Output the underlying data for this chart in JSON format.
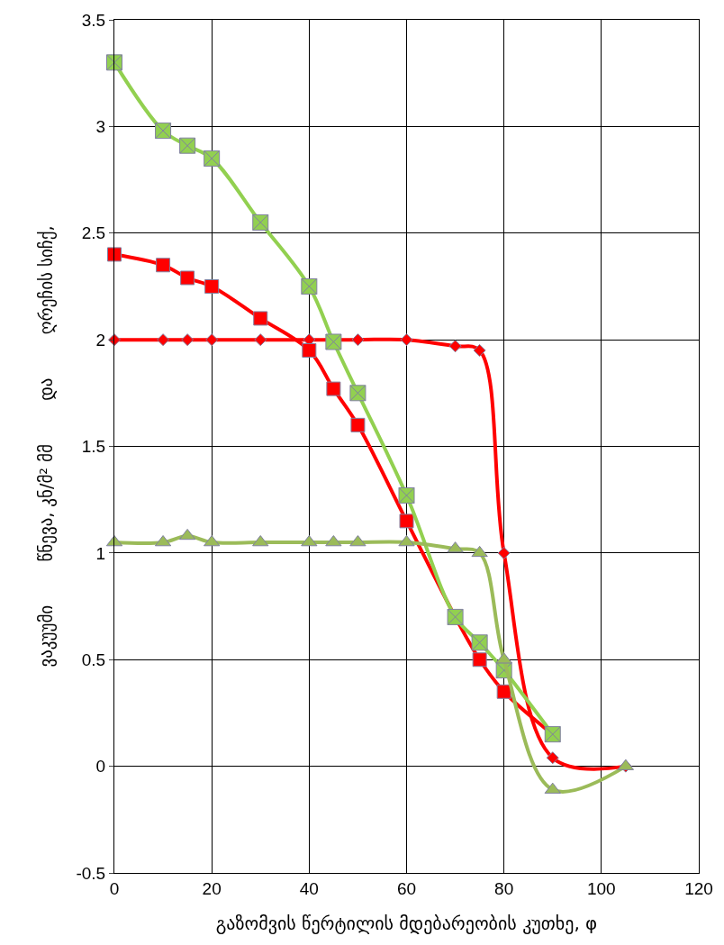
{
  "chart_data": {
    "type": "line",
    "xlabel": "გაზომვის წერტილის მდებარეობის კუთხე, φ",
    "ylabel": "ვაკუუმი        წნევა, კნ/მ² მმ        და        ღრეჩის სიჩქ,",
    "x": [
      0,
      10,
      15,
      20,
      30,
      40,
      45,
      50,
      60,
      70,
      75,
      80,
      90
    ],
    "series": [
      {
        "color": "#ff0000",
        "marker": "diamond",
        "x": [
          0,
          10,
          15,
          20,
          30,
          40,
          50,
          60,
          70,
          75,
          80,
          90,
          105
        ],
        "values": [
          2,
          2,
          2,
          2,
          2,
          2,
          2,
          2,
          1.97,
          1.95,
          1.0,
          0.04,
          0
        ]
      },
      {
        "color": "#ff0000",
        "marker": "square",
        "values": [
          2.4,
          2.35,
          2.29,
          2.25,
          2.1,
          1.95,
          1.77,
          1.6,
          1.15,
          0.7,
          0.5,
          0.35,
          0.15
        ]
      },
      {
        "color": "#92d050",
        "marker": "cross",
        "values": [
          3.3,
          2.98,
          2.91,
          2.85,
          2.55,
          2.25,
          1.99,
          1.75,
          1.27,
          0.7,
          0.58,
          0.45,
          0.15
        ]
      },
      {
        "color": "#9bbb59",
        "marker": "triangle",
        "x": [
          0,
          10,
          15,
          20,
          30,
          40,
          45,
          50,
          60,
          70,
          75,
          80,
          90,
          105
        ],
        "values": [
          1.05,
          1.05,
          1.08,
          1.05,
          1.05,
          1.05,
          1.05,
          1.05,
          1.05,
          1.02,
          1.0,
          0.5,
          -0.11,
          0
        ]
      }
    ],
    "xlim": [
      0,
      120
    ],
    "xticks": [
      0,
      20,
      40,
      60,
      80,
      100,
      120
    ],
    "ylim": [
      -0.5,
      3.5
    ],
    "yticks": [
      -0.5,
      0,
      0.5,
      1,
      1.5,
      2,
      2.5,
      3,
      3.5
    ],
    "grid": true
  }
}
